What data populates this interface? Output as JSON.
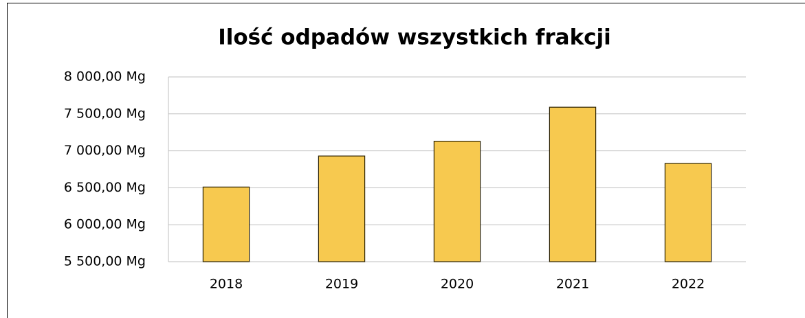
{
  "chart_data": {
    "type": "bar",
    "title": "Ilość odpadów wszystkich frakcji",
    "categories": [
      "2018",
      "2019",
      "2020",
      "2021",
      "2022"
    ],
    "values": [
      6510,
      6930,
      7130,
      7590,
      6830
    ],
    "color": "#f7c94f",
    "ylim": [
      5500,
      8000
    ],
    "yticks": [
      {
        "value": 5500,
        "label": "5 500,00 Mg"
      },
      {
        "value": 6000,
        "label": "6 000,00 Mg"
      },
      {
        "value": 6500,
        "label": "6 500,00 Mg"
      },
      {
        "value": 7000,
        "label": "7 000,00 Mg"
      },
      {
        "value": 7500,
        "label": "7 500,00 Mg"
      },
      {
        "value": 8000,
        "label": "8 000,00 Mg"
      }
    ],
    "grid": true
  }
}
